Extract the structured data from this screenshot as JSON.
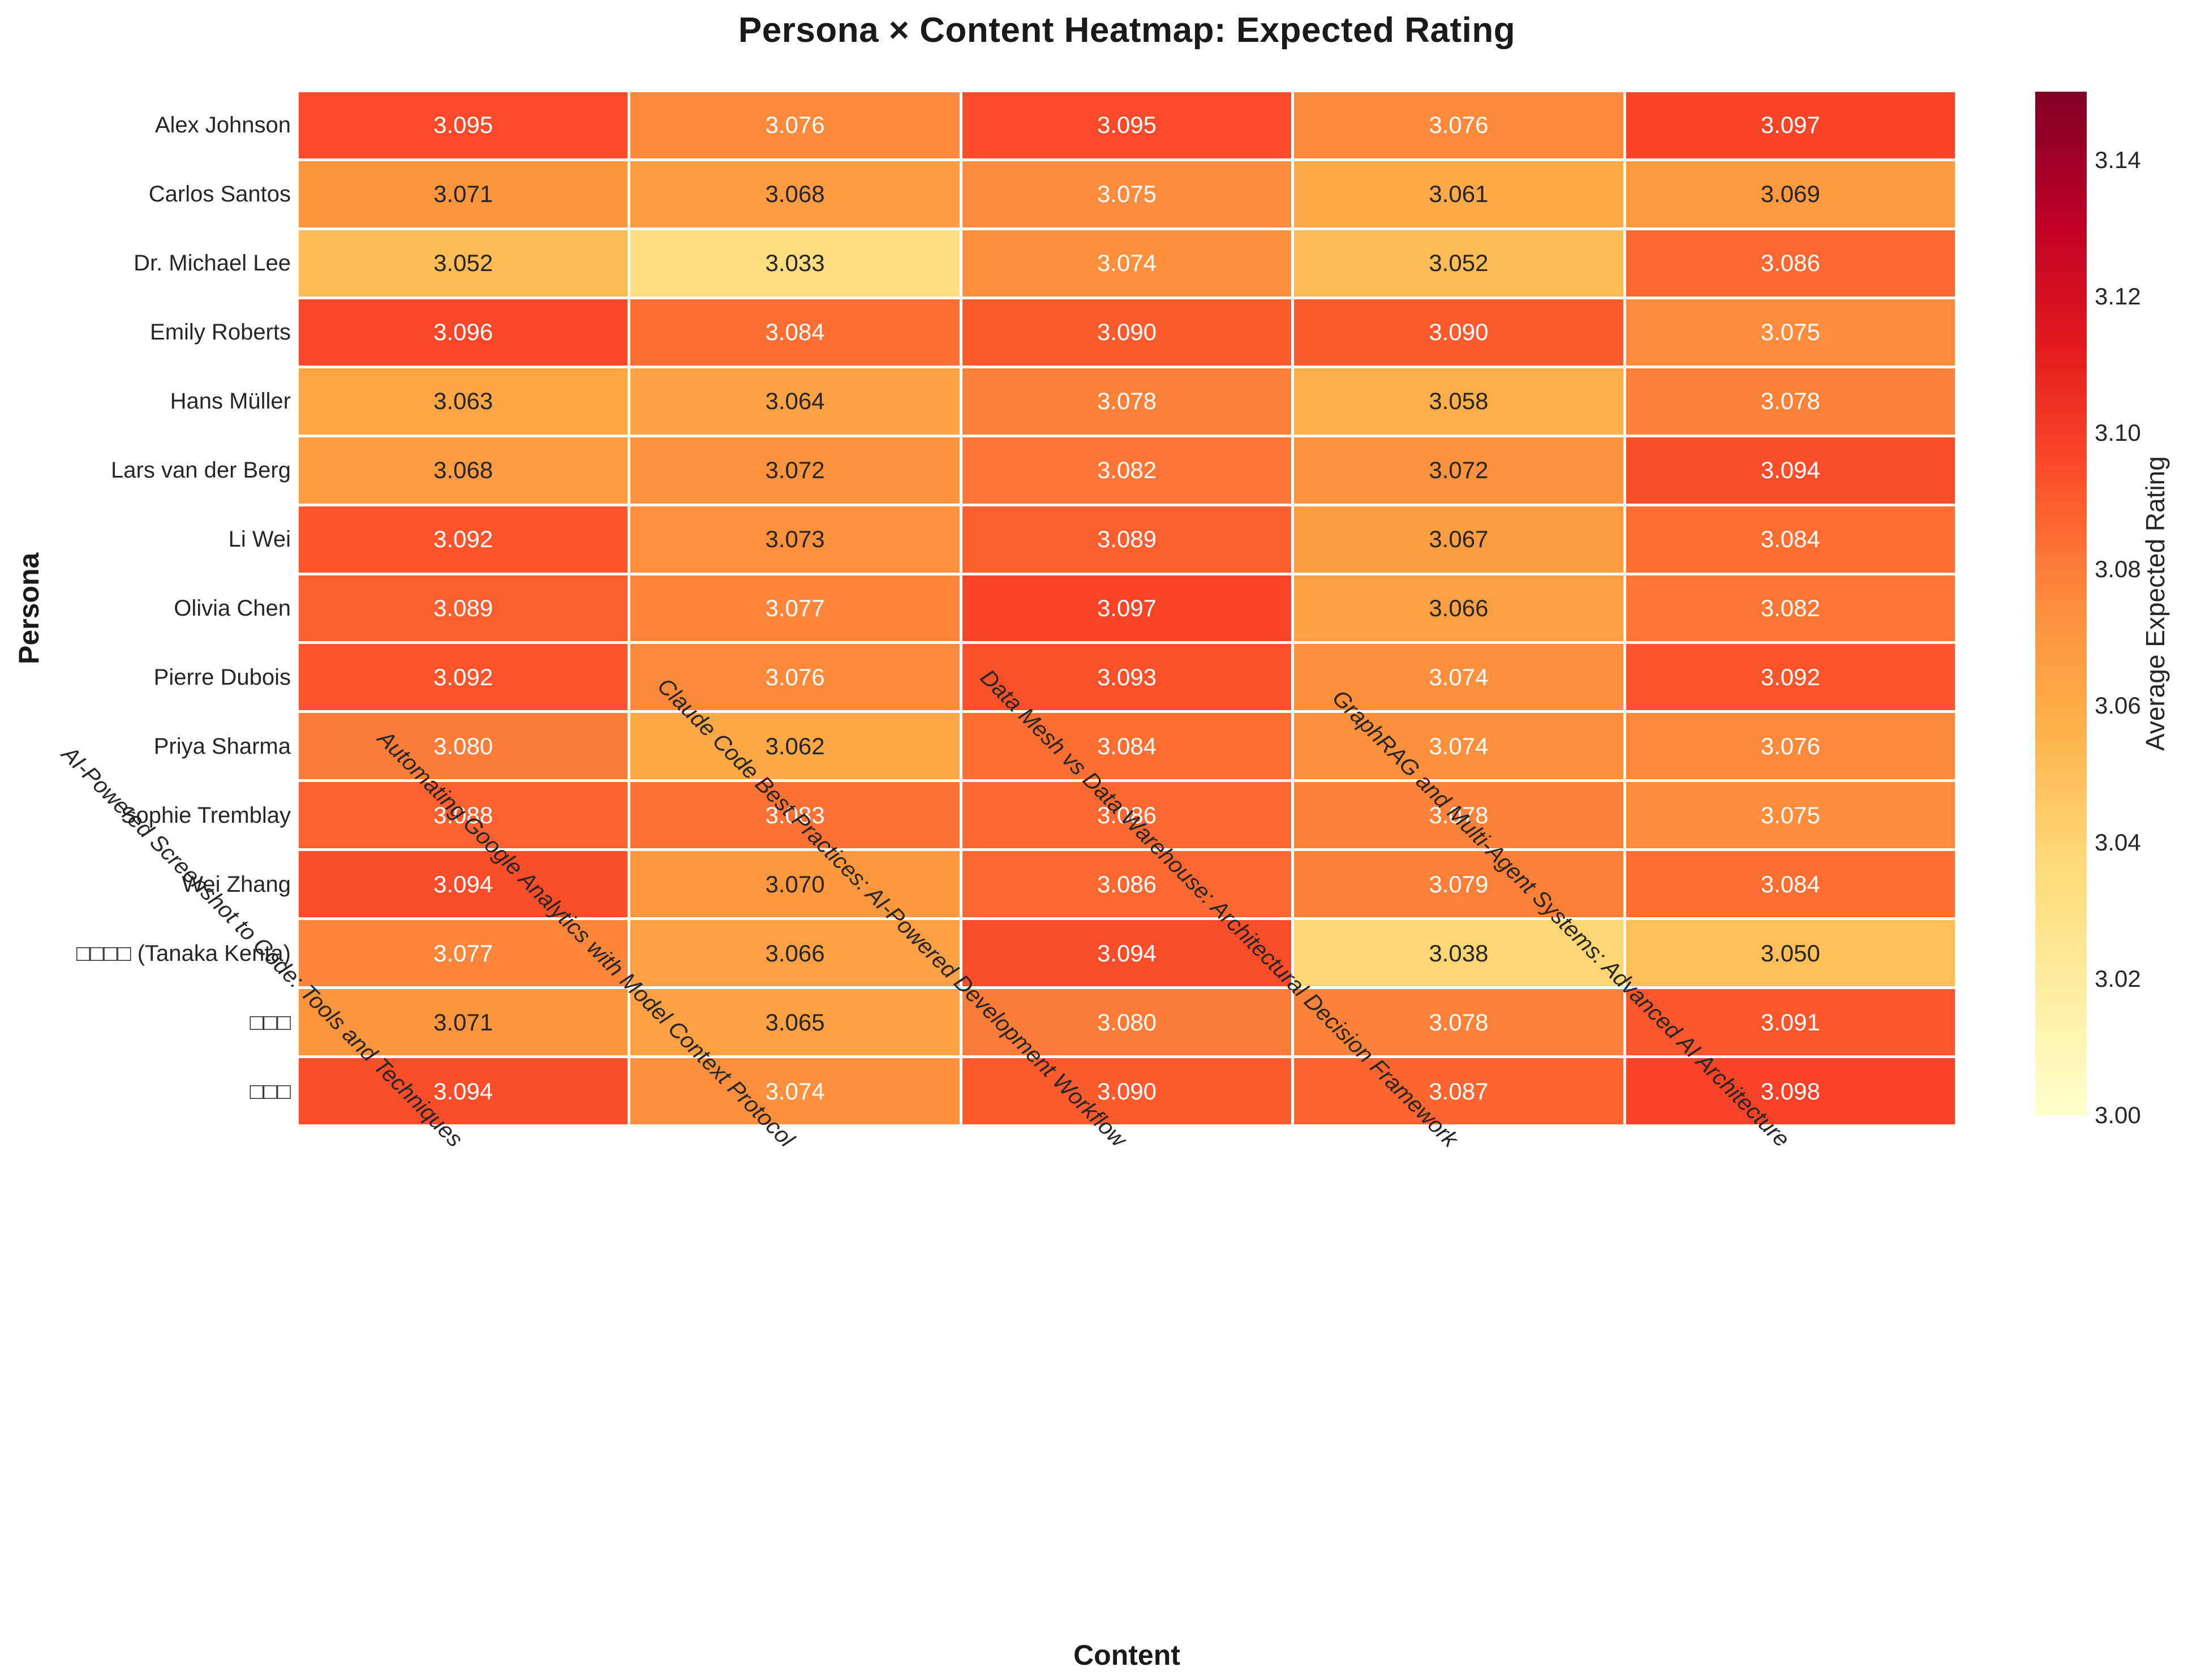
{
  "title": "Persona × Content Heatmap: Expected Rating",
  "x_axis": {
    "label": "Content"
  },
  "y_axis": {
    "label": "Persona"
  },
  "colorbar": {
    "label": "Average Expected Rating",
    "tick_labels": [
      "3.00",
      "3.02",
      "3.04",
      "3.06",
      "3.08",
      "3.10",
      "3.12",
      "3.14"
    ],
    "tick_values": [
      3.0,
      3.02,
      3.04,
      3.06,
      3.08,
      3.1,
      3.12,
      3.14
    ],
    "vmin": 3.0,
    "vmax": 3.15,
    "colormap_name": "YlOrRd",
    "gradient_stops": [
      "#ffffcc",
      "#ffeda0",
      "#fed976",
      "#feb24c",
      "#fd8d3c",
      "#fc4e2a",
      "#e31a1c",
      "#bd0026",
      "#800026"
    ]
  },
  "chart_data": {
    "type": "heatmap",
    "title": "Persona × Content Heatmap: Expected Rating",
    "xlabel": "Content",
    "ylabel": "Persona",
    "x_categories": [
      "AI-Powered Screenshot to Code: Tools and Techniques",
      "Automating Google Analytics with Model Context Protocol",
      "Claude Code Best Practices: AI-Powered Development Workflow",
      "Data Mesh vs Data Warehouse: Architectural Decision Framework",
      "GraphRAG and Multi-Agent Systems: Advanced AI Architecture"
    ],
    "y_categories": [
      "Alex Johnson",
      "Carlos Santos",
      "Dr. Michael Lee",
      "Emily Roberts",
      "Hans Müller",
      "Lars van der Berg",
      "Li Wei",
      "Olivia Chen",
      "Pierre Dubois",
      "Priya Sharma",
      "Sophie Tremblay",
      "Wei Zhang",
      "□□□□ (Tanaka Kenta)",
      "□□□",
      "□□□"
    ],
    "values": [
      [
        3.095,
        3.076,
        3.095,
        3.076,
        3.097
      ],
      [
        3.071,
        3.068,
        3.075,
        3.061,
        3.069
      ],
      [
        3.052,
        3.033,
        3.074,
        3.052,
        3.086
      ],
      [
        3.096,
        3.084,
        3.09,
        3.09,
        3.075
      ],
      [
        3.063,
        3.064,
        3.078,
        3.058,
        3.078
      ],
      [
        3.068,
        3.072,
        3.082,
        3.072,
        3.094
      ],
      [
        3.092,
        3.073,
        3.089,
        3.067,
        3.084
      ],
      [
        3.089,
        3.077,
        3.097,
        3.066,
        3.082
      ],
      [
        3.092,
        3.076,
        3.093,
        3.074,
        3.092
      ],
      [
        3.08,
        3.062,
        3.084,
        3.074,
        3.076
      ],
      [
        3.088,
        3.083,
        3.086,
        3.078,
        3.075
      ],
      [
        3.094,
        3.07,
        3.086,
        3.079,
        3.084
      ],
      [
        3.077,
        3.066,
        3.094,
        3.038,
        3.05
      ],
      [
        3.071,
        3.065,
        3.08,
        3.078,
        3.091
      ],
      [
        3.094,
        3.074,
        3.09,
        3.087,
        3.098
      ]
    ],
    "value_decimals": 3,
    "color_range": [
      3.0,
      3.15
    ],
    "annotation_colors": {
      "light_text": "#ffffff",
      "dark_text": "#262626"
    },
    "grid_line_color": "#ffffff",
    "legend_position": "right"
  }
}
